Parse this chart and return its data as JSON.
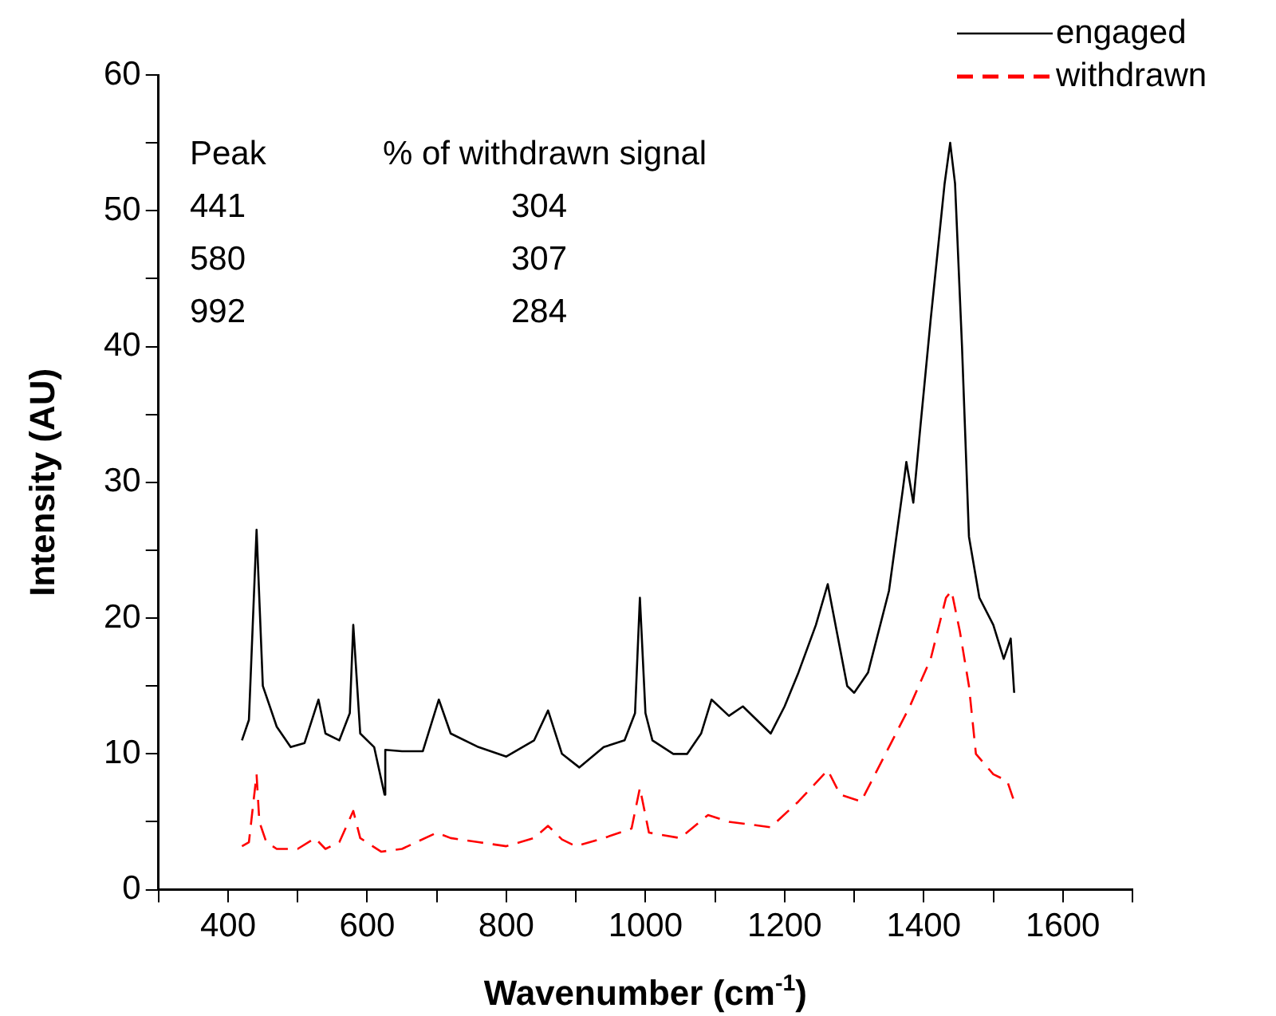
{
  "chart_data": {
    "type": "line",
    "xlabel": "Wavenumber (cm$^{-1}$)",
    "ylabel": "Intensity (AU)",
    "xlim": [
      300,
      1700
    ],
    "xticks": [
      {
        "value": 300,
        "label": null
      },
      400,
      {
        "value": 500,
        "label": null
      },
      600,
      {
        "value": 700,
        "label": null
      },
      800,
      {
        "value": 900,
        "label": null
      },
      1000,
      {
        "value": 1100,
        "label": null
      },
      1200,
      {
        "value": 1300,
        "label": null
      },
      1400,
      {
        "value": 1500,
        "label": null
      },
      1600,
      {
        "value": 1700,
        "label": null
      }
    ],
    "ylim": [
      0,
      60
    ],
    "yticks": [
      0,
      {
        "value": 5,
        "label": null
      },
      10,
      {
        "value": 15,
        "label": null
      },
      20,
      {
        "value": 25,
        "label": null
      },
      30,
      {
        "value": 35,
        "label": null
      },
      40,
      {
        "value": 45,
        "label": null
      },
      50,
      {
        "value": 55,
        "label": null
      },
      60
    ],
    "grid": false,
    "legend": "top right",
    "marker": "none",
    "annotations": [
      "Peak",
      "% of withdrawn signal",
      "441",
      "304",
      "580",
      "307",
      "992",
      "284"
    ],
    "series": [
      {
        "name": "engaged",
        "color": "#000000",
        "line_style": "solid",
        "x": [
          420,
          430,
          441,
          450,
          470,
          490,
          510,
          530,
          540,
          560,
          575,
          580,
          590,
          610,
          625,
          626,
          650,
          680,
          703,
          720,
          760,
          800,
          840,
          860,
          880,
          905,
          940,
          970,
          985,
          992,
          1000,
          1010,
          1040,
          1060,
          1080,
          1095,
          1120,
          1140,
          1180,
          1200,
          1220,
          1245,
          1262,
          1275,
          1290,
          1300,
          1320,
          1350,
          1370,
          1375,
          1385,
          1395,
          1410,
          1430,
          1438,
          1445,
          1455,
          1465,
          1480,
          1500,
          1515,
          1525,
          1530
        ],
        "values": [
          11,
          12.5,
          26.5,
          15,
          12,
          10.5,
          10.8,
          14,
          11.5,
          11,
          13,
          19.5,
          11.5,
          10.5,
          7,
          10.3,
          10.2,
          10.2,
          14,
          11.5,
          10.5,
          9.8,
          11,
          13.2,
          10,
          9,
          10.5,
          11,
          13,
          21.5,
          13,
          11,
          10,
          10,
          11.5,
          14,
          12.8,
          13.5,
          11.5,
          13.5,
          16,
          19.5,
          22.5,
          19,
          15,
          14.5,
          16,
          22,
          29.5,
          31.5,
          28.5,
          34,
          42,
          52,
          55,
          52,
          40,
          26,
          21.5,
          19.5,
          17,
          18.5,
          14.5
        ]
      },
      {
        "name": "withdrawn",
        "color": "#ff0000",
        "line_style": "dashed",
        "x": [
          420,
          430,
          441,
          445,
          455,
          470,
          500,
          525,
          540,
          560,
          580,
          590,
          620,
          650,
          700,
          720,
          760,
          800,
          840,
          860,
          880,
          900,
          940,
          980,
          992,
          1005,
          1050,
          1090,
          1120,
          1180,
          1220,
          1262,
          1280,
          1310,
          1340,
          1380,
          1410,
          1432,
          1440,
          1452,
          1465,
          1475,
          1500,
          1520,
          1530
        ],
        "values": [
          3.2,
          3.5,
          8.5,
          5,
          3.5,
          3,
          3,
          3.8,
          3,
          3.5,
          5.8,
          3.8,
          2.8,
          3,
          4.2,
          3.8,
          3.5,
          3.2,
          3.8,
          4.7,
          3.7,
          3.2,
          3.8,
          4.5,
          7.5,
          4.2,
          3.8,
          5.5,
          5,
          4.6,
          6.5,
          8.8,
          7,
          6.5,
          9.5,
          13.5,
          17,
          21.5,
          22,
          19,
          15,
          10,
          8.5,
          8,
          6.5
        ]
      }
    ]
  }
}
